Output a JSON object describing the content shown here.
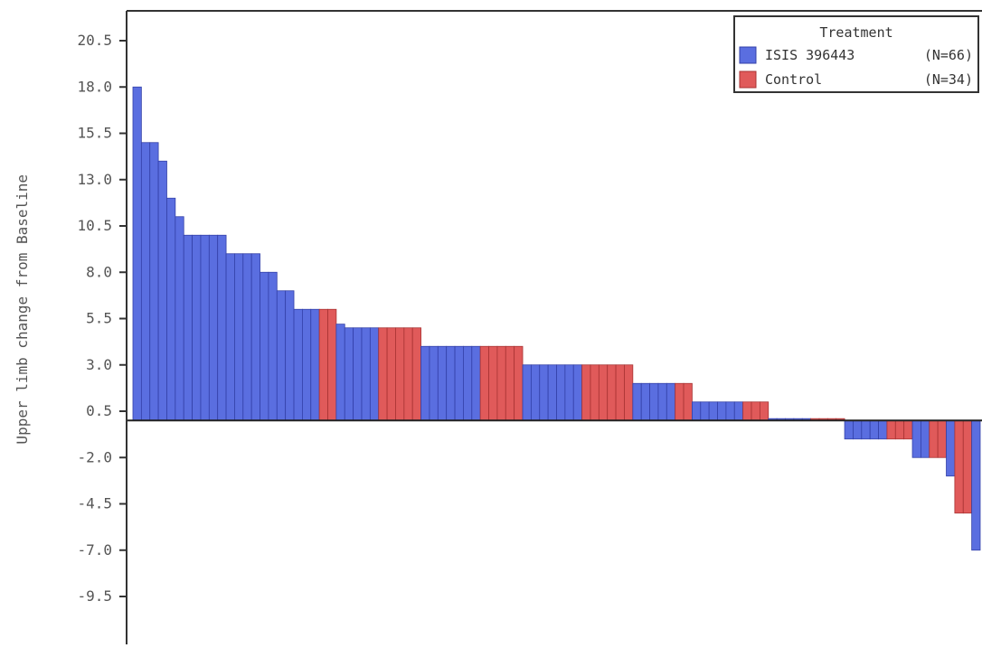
{
  "chart_data": {
    "type": "bar",
    "title": "",
    "xlabel": "",
    "ylabel": "Upper limb change from Baseline",
    "ylim": [
      -12,
      23
    ],
    "yticks": [
      "20.5",
      "18.0",
      "15.5",
      "13.0",
      "10.5",
      "8.0",
      "5.5",
      "3.0",
      "0.5",
      "-2.0",
      "-4.5",
      "-7.0",
      "-9.5"
    ],
    "grid": false,
    "legend": {
      "title": "Treatment",
      "placement": "top-right",
      "entries": [
        {
          "name": "ISIS 396443",
          "n": "(N=66)",
          "color": "#5a6ee0"
        },
        {
          "name": "Control",
          "n": "(N=34)",
          "color": "#e05a5a"
        }
      ]
    },
    "series": [
      {
        "name": "ISIS 396443",
        "color": "#5a6ee0"
      },
      {
        "name": "Control",
        "color": "#e05a5a"
      }
    ],
    "bars": [
      {
        "g": 0,
        "v": 18
      },
      {
        "g": 0,
        "v": 15
      },
      {
        "g": 0,
        "v": 15
      },
      {
        "g": 0,
        "v": 14
      },
      {
        "g": 0,
        "v": 12
      },
      {
        "g": 0,
        "v": 11
      },
      {
        "g": 0,
        "v": 10
      },
      {
        "g": 0,
        "v": 10
      },
      {
        "g": 0,
        "v": 10
      },
      {
        "g": 0,
        "v": 10
      },
      {
        "g": 0,
        "v": 10
      },
      {
        "g": 0,
        "v": 9
      },
      {
        "g": 0,
        "v": 9
      },
      {
        "g": 0,
        "v": 9
      },
      {
        "g": 0,
        "v": 9
      },
      {
        "g": 0,
        "v": 8
      },
      {
        "g": 0,
        "v": 8
      },
      {
        "g": 0,
        "v": 7
      },
      {
        "g": 0,
        "v": 7
      },
      {
        "g": 0,
        "v": 6
      },
      {
        "g": 0,
        "v": 6
      },
      {
        "g": 0,
        "v": 6
      },
      {
        "g": 1,
        "v": 6
      },
      {
        "g": 1,
        "v": 6
      },
      {
        "g": 0,
        "v": 5.2
      },
      {
        "g": 0,
        "v": 5
      },
      {
        "g": 0,
        "v": 5
      },
      {
        "g": 0,
        "v": 5
      },
      {
        "g": 0,
        "v": 5
      },
      {
        "g": 1,
        "v": 5
      },
      {
        "g": 1,
        "v": 5
      },
      {
        "g": 1,
        "v": 5
      },
      {
        "g": 1,
        "v": 5
      },
      {
        "g": 1,
        "v": 5
      },
      {
        "g": 0,
        "v": 4
      },
      {
        "g": 0,
        "v": 4
      },
      {
        "g": 0,
        "v": 4
      },
      {
        "g": 0,
        "v": 4
      },
      {
        "g": 0,
        "v": 4
      },
      {
        "g": 0,
        "v": 4
      },
      {
        "g": 0,
        "v": 4
      },
      {
        "g": 1,
        "v": 4
      },
      {
        "g": 1,
        "v": 4
      },
      {
        "g": 1,
        "v": 4
      },
      {
        "g": 1,
        "v": 4
      },
      {
        "g": 1,
        "v": 4
      },
      {
        "g": 0,
        "v": 3
      },
      {
        "g": 0,
        "v": 3
      },
      {
        "g": 0,
        "v": 3
      },
      {
        "g": 0,
        "v": 3
      },
      {
        "g": 0,
        "v": 3
      },
      {
        "g": 0,
        "v": 3
      },
      {
        "g": 0,
        "v": 3
      },
      {
        "g": 1,
        "v": 3
      },
      {
        "g": 1,
        "v": 3
      },
      {
        "g": 1,
        "v": 3
      },
      {
        "g": 1,
        "v": 3
      },
      {
        "g": 1,
        "v": 3
      },
      {
        "g": 1,
        "v": 3
      },
      {
        "g": 0,
        "v": 2
      },
      {
        "g": 0,
        "v": 2
      },
      {
        "g": 0,
        "v": 2
      },
      {
        "g": 0,
        "v": 2
      },
      {
        "g": 0,
        "v": 2
      },
      {
        "g": 1,
        "v": 2
      },
      {
        "g": 1,
        "v": 2
      },
      {
        "g": 0,
        "v": 1
      },
      {
        "g": 0,
        "v": 1
      },
      {
        "g": 0,
        "v": 1
      },
      {
        "g": 0,
        "v": 1
      },
      {
        "g": 0,
        "v": 1
      },
      {
        "g": 0,
        "v": 1
      },
      {
        "g": 1,
        "v": 1
      },
      {
        "g": 1,
        "v": 1
      },
      {
        "g": 1,
        "v": 1
      },
      {
        "g": 0,
        "v": 0.1
      },
      {
        "g": 0,
        "v": 0.1
      },
      {
        "g": 0,
        "v": 0.1
      },
      {
        "g": 0,
        "v": 0.1
      },
      {
        "g": 0,
        "v": 0.1
      },
      {
        "g": 1,
        "v": 0.1
      },
      {
        "g": 1,
        "v": 0.1
      },
      {
        "g": 1,
        "v": 0.1
      },
      {
        "g": 1,
        "v": 0.1
      },
      {
        "g": 0,
        "v": -1
      },
      {
        "g": 0,
        "v": -1
      },
      {
        "g": 0,
        "v": -1
      },
      {
        "g": 0,
        "v": -1
      },
      {
        "g": 0,
        "v": -1
      },
      {
        "g": 1,
        "v": -1
      },
      {
        "g": 1,
        "v": -1
      },
      {
        "g": 1,
        "v": -1
      },
      {
        "g": 0,
        "v": -2
      },
      {
        "g": 0,
        "v": -2
      },
      {
        "g": 1,
        "v": -2
      },
      {
        "g": 1,
        "v": -2
      },
      {
        "g": 0,
        "v": -3
      },
      {
        "g": 1,
        "v": -5
      },
      {
        "g": 1,
        "v": -5
      },
      {
        "g": 0,
        "v": -7
      }
    ]
  }
}
